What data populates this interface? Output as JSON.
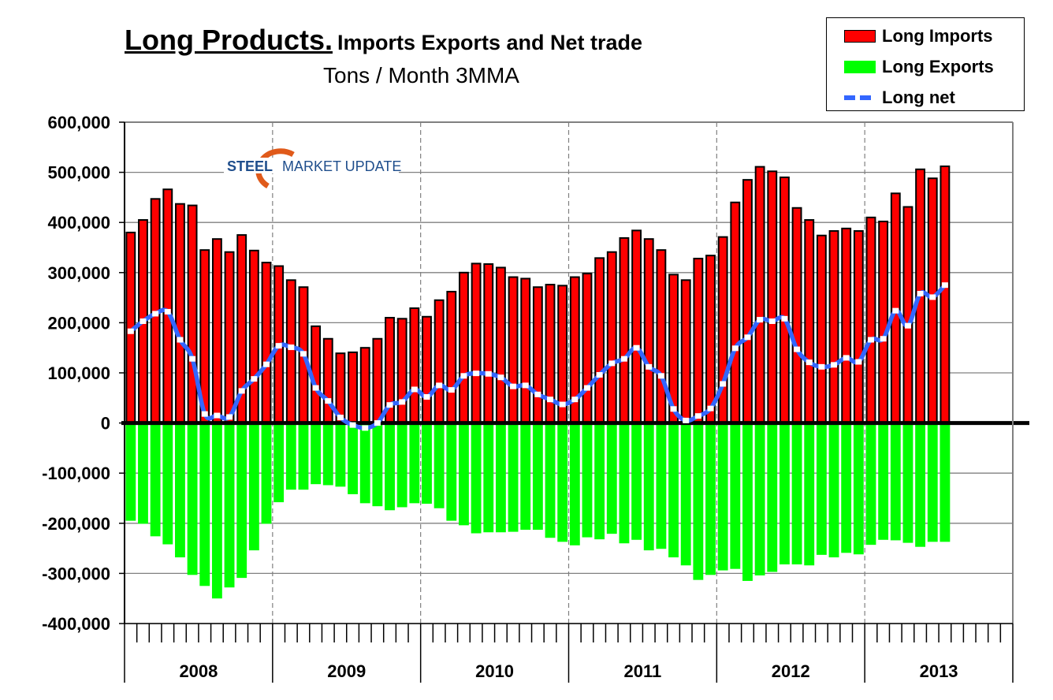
{
  "title": {
    "main": "Long Products.",
    "rest": "Imports Exports and Net trade",
    "subtitle": "Tons / Month 3MMA"
  },
  "logo": {
    "text_bold": "STEEL",
    "text_rest": "MARKET UPDATE"
  },
  "legend": [
    {
      "label": "Long Imports",
      "color": "#ff0000"
    },
    {
      "label": "Long Exports",
      "color": "#00ff00"
    },
    {
      "label": "Long net",
      "color": "#3366ff"
    }
  ],
  "chart_data": {
    "type": "bar",
    "title": "Long Products. Imports Exports and Net trade",
    "subtitle": "Tons / Month 3MMA",
    "ylim": [
      -400000,
      600000
    ],
    "yticks": [
      "600,000",
      "500,000",
      "400,000",
      "300,000",
      "200,000",
      "100,000",
      "0",
      "-100,000",
      "-200,000",
      "-300,000",
      "-400,000"
    ],
    "ytick_values": [
      600000,
      500000,
      400000,
      300000,
      200000,
      100000,
      0,
      -100000,
      -200000,
      -300000,
      -400000
    ],
    "year_labels": [
      "2008",
      "2009",
      "2010",
      "2011",
      "2012",
      "2013"
    ],
    "x_start": "2008-01",
    "x_end": "2013-07",
    "grid": true,
    "legend_position": "top-right",
    "series": [
      {
        "name": "Long Imports",
        "type": "bar",
        "color": "#ff0000",
        "values": [
          380000,
          405000,
          447000,
          466000,
          437000,
          434000,
          345000,
          367000,
          341000,
          375000,
          344000,
          320000,
          313000,
          285000,
          271000,
          193000,
          168000,
          139000,
          141000,
          150000,
          168000,
          210000,
          208000,
          229000,
          212000,
          245000,
          262000,
          300000,
          318000,
          317000,
          310000,
          291000,
          288000,
          271000,
          276000,
          274000,
          291000,
          298000,
          329000,
          341000,
          369000,
          384000,
          367000,
          345000,
          296000,
          285000,
          328000,
          334000,
          371000,
          440000,
          485000,
          511000,
          502000,
          490000,
          429000,
          405000,
          374000,
          383000,
          388000,
          383000,
          410000,
          402000,
          458000,
          431000,
          506000,
          488000,
          512000
        ]
      },
      {
        "name": "Long Exports",
        "type": "bar",
        "color": "#00ff00",
        "values": [
          -195000,
          -201000,
          -226000,
          -242000,
          -268000,
          -303000,
          -325000,
          -350000,
          -328000,
          -309000,
          -254000,
          -201000,
          -158000,
          -133000,
          -133000,
          -122000,
          -124000,
          -127000,
          -142000,
          -160000,
          -166000,
          -174000,
          -168000,
          -160000,
          -161000,
          -170000,
          -195000,
          -204000,
          -220000,
          -218000,
          -218000,
          -217000,
          -213000,
          -213000,
          -229000,
          -237000,
          -244000,
          -228000,
          -232000,
          -221000,
          -240000,
          -233000,
          -254000,
          -251000,
          -268000,
          -284000,
          -313000,
          -303000,
          -294000,
          -291000,
          -315000,
          -304000,
          -297000,
          -282000,
          -282000,
          -284000,
          -263000,
          -268000,
          -259000,
          -262000,
          -243000,
          -233000,
          -234000,
          -239000,
          -247000,
          -237000,
          -237000
        ]
      },
      {
        "name": "Long net",
        "type": "line",
        "color": "#3366ff",
        "values": [
          183000,
          203000,
          218000,
          222000,
          166000,
          128000,
          18000,
          15000,
          12000,
          64000,
          88000,
          117000,
          154000,
          151000,
          138000,
          70000,
          44000,
          11000,
          -4000,
          -10000,
          0,
          36000,
          42000,
          67000,
          52000,
          75000,
          66000,
          94000,
          99000,
          98000,
          91000,
          73000,
          75000,
          57000,
          47000,
          37000,
          47000,
          70000,
          96000,
          119000,
          128000,
          150000,
          112000,
          94000,
          28000,
          5000,
          14000,
          29000,
          78000,
          149000,
          171000,
          206000,
          203000,
          208000,
          147000,
          121000,
          112000,
          116000,
          130000,
          122000,
          166000,
          168000,
          224000,
          194000,
          258000,
          251000,
          275000
        ]
      }
    ]
  }
}
